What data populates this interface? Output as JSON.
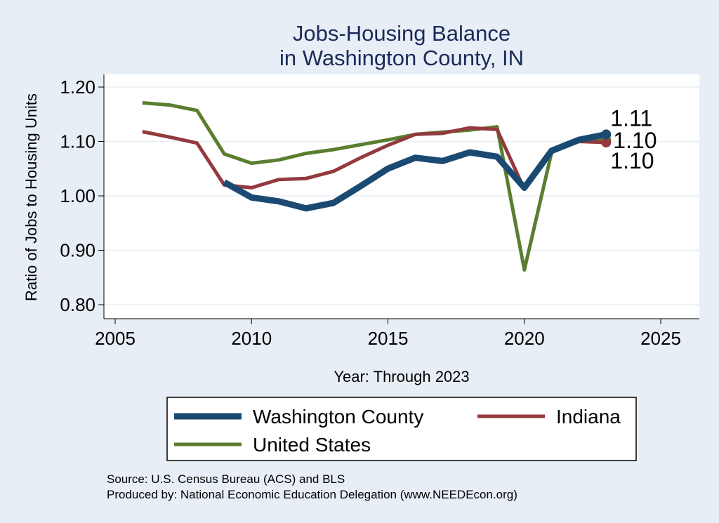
{
  "chart_data": {
    "type": "line",
    "title_lines": [
      "Jobs-Housing Balance",
      "in Washington County, IN"
    ],
    "xlabel": "Year: Through 2023",
    "ylabel": "Ratio of Jobs to Housing Units",
    "xlim": [
      2005,
      2025
    ],
    "ylim": [
      0.8,
      1.2
    ],
    "x_ticks": [
      2005,
      2010,
      2015,
      2020,
      2025
    ],
    "y_ticks": [
      0.8,
      0.9,
      1.0,
      1.1,
      1.2
    ],
    "x_tick_labels": [
      "2005",
      "2010",
      "2015",
      "2020",
      "2025"
    ],
    "y_tick_labels": [
      "0.80",
      "0.90",
      "1.00",
      "1.10",
      "1.20"
    ],
    "grid": true,
    "legend_position": "bottom",
    "series": [
      {
        "name": "Washington County",
        "color": "#1a4a72",
        "x": [
          2009,
          2010,
          2011,
          2012,
          2013,
          2014,
          2015,
          2016,
          2017,
          2018,
          2019,
          2020,
          2021,
          2022,
          2023
        ],
        "values": [
          1.025,
          0.997,
          0.99,
          0.977,
          0.987,
          1.018,
          1.05,
          1.07,
          1.064,
          1.08,
          1.072,
          1.015,
          1.083,
          1.103,
          1.113
        ],
        "end_label": "1.11"
      },
      {
        "name": "Indiana",
        "color": "#923a3e",
        "x": [
          2006,
          2007,
          2008,
          2009,
          2010,
          2011,
          2012,
          2013,
          2014,
          2015,
          2016,
          2017,
          2018,
          2019,
          2020,
          2021,
          2022,
          2023
        ],
        "values": [
          1.118,
          1.108,
          1.097,
          1.02,
          1.015,
          1.03,
          1.032,
          1.045,
          1.07,
          1.093,
          1.113,
          1.115,
          1.125,
          1.122,
          1.012,
          1.085,
          1.1,
          1.098
        ],
        "end_label": "1.10"
      },
      {
        "name": "United States",
        "color": "#5a7e2f",
        "x": [
          2006,
          2007,
          2008,
          2009,
          2010,
          2011,
          2012,
          2013,
          2014,
          2015,
          2016,
          2017,
          2018,
          2019,
          2020,
          2021,
          2022,
          2023
        ],
        "values": [
          1.171,
          1.167,
          1.157,
          1.077,
          1.06,
          1.066,
          1.078,
          1.085,
          1.094,
          1.103,
          1.113,
          1.117,
          1.121,
          1.127,
          0.864,
          1.08,
          1.1,
          1.103
        ],
        "end_label": "1.10"
      }
    ],
    "notes": [
      "Source: U.S. Census Bureau (ACS) and BLS",
      "Produced by: National Economic Education Delegation (www.NEEDEcon.org)"
    ]
  }
}
